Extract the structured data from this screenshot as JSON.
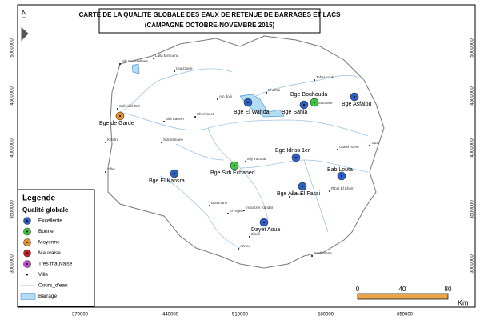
{
  "title": [
    "CARTE DE LA QUALITE GLOBALE DES EAUX DE RETENUE DE BARRAGES ET LACS",
    "(CAMPAGNE OCTOBRE-NOVEMBRE 2015)"
  ],
  "north": "N",
  "x_axis": [
    "370000",
    "440000",
    "510000",
    "580000",
    "650000"
  ],
  "y_axis": [
    "5000000",
    "4500000",
    "4000000",
    "3500000",
    "3000000"
  ],
  "legend": {
    "title": "Legende",
    "subtitle": "Qualité globale",
    "items": [
      {
        "label": "Excellente",
        "color": "#2a5fc8"
      },
      {
        "label": "Bonne",
        "color": "#3ec43e"
      },
      {
        "label": "Moyenne",
        "color": "#e8922a"
      },
      {
        "label": "Mauvaise",
        "color": "#c81e1e"
      },
      {
        "label": "Très mauvaise",
        "color": "#c44ad0"
      },
      {
        "label": "Ville"
      },
      {
        "label": "Cours_d'eau"
      },
      {
        "label": "Barrage"
      }
    ]
  },
  "stations": [
    {
      "label": "Bge El Wahda",
      "color": "#2a5fc8"
    },
    {
      "label": "Bge Bouhouda",
      "color": "#3ec43e"
    },
    {
      "label": "Bge Sahla",
      "color": "#2a5fc8"
    },
    {
      "label": "Bge Asfalou",
      "color": "#2a5fc8"
    },
    {
      "label": "Bge de Garde",
      "color": "#e8922a"
    },
    {
      "label": "Bge Idriss 1er",
      "color": "#2a5fc8"
    },
    {
      "label": "Bge Sidi Echahed",
      "color": "#3ec43e"
    },
    {
      "label": "Bge El Kansra",
      "color": "#2a5fc8"
    },
    {
      "label": "Bab Louta",
      "color": "#2a5fc8"
    },
    {
      "label": "Bge Allal El Fassi",
      "color": "#2a5fc8"
    },
    {
      "label": "Dayet Aoua",
      "color": "#2a5fc8"
    }
  ],
  "cities": [
    "Mly Bousselham",
    "Lalla Mimouna",
    "Ouezzane",
    "Ain dorij",
    "Rhafsai",
    "Tahar souk",
    "Taounate",
    "Sidi Allal Tazi",
    "Sidi Kacem",
    "Kenitra",
    "Khemisset",
    "Sidi Slimane",
    "Mly Yacoub",
    "Ouled Azem",
    "Taza",
    "Sefrou",
    "Ribat El Kheir",
    "Imouzzer Kandar",
    "Ifrane",
    "Azrou",
    "Boulmane",
    "Tiflet",
    "El Hajeb",
    "Boulemane"
  ],
  "scale": {
    "ticks": [
      "0",
      "40",
      "80"
    ],
    "unit": "Km"
  }
}
